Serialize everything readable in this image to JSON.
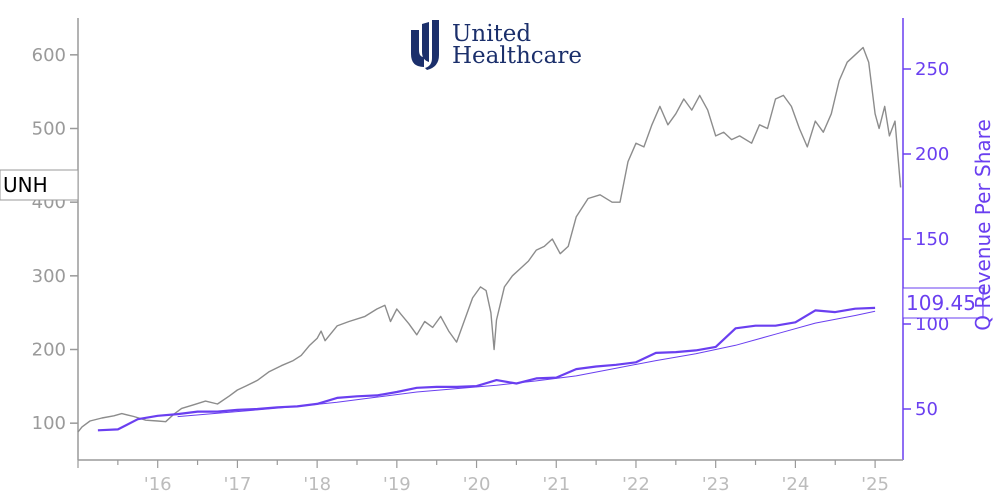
{
  "logo": {
    "line1": "United",
    "line2": "Healthcare",
    "color": "#1b2f6b"
  },
  "chart_data": {
    "type": "line",
    "ticker_label": "UNH",
    "ylabel_right": "Q Revenue Per Share",
    "last_value_label": "109.45",
    "xlim": [
      2015.0,
      2025.35
    ],
    "ylim_left": [
      50,
      650
    ],
    "ylim_right": [
      20,
      280
    ],
    "x_ticks": [
      {
        "x": 2016,
        "label": "'16"
      },
      {
        "x": 2017,
        "label": "'17"
      },
      {
        "x": 2018,
        "label": "'18"
      },
      {
        "x": 2019,
        "label": "'19"
      },
      {
        "x": 2020,
        "label": "'20"
      },
      {
        "x": 2021,
        "label": "'21"
      },
      {
        "x": 2022,
        "label": "'22"
      },
      {
        "x": 2023,
        "label": "'23"
      },
      {
        "x": 2024,
        "label": "'24"
      },
      {
        "x": 2025,
        "label": "'25"
      }
    ],
    "y_ticks_left": [
      {
        "v": 100,
        "label": "100"
      },
      {
        "v": 200,
        "label": "200"
      },
      {
        "v": 300,
        "label": "300"
      },
      {
        "v": 400,
        "label": "400"
      },
      {
        "v": 500,
        "label": "500"
      },
      {
        "v": 600,
        "label": "600"
      }
    ],
    "y_ticks_right": [
      {
        "v": 50,
        "label": "50"
      },
      {
        "v": 100,
        "label": "100"
      },
      {
        "v": 150,
        "label": "150"
      },
      {
        "v": 200,
        "label": "200"
      },
      {
        "v": 250,
        "label": "250"
      }
    ],
    "colors": {
      "price": "#8c8c8c",
      "revenue": "#6a3ff0",
      "revenue_trend": "#6a3ff0",
      "axis_left": "#9a9a9a",
      "axis_right": "#6a3ff0",
      "axis_bottom": "#9a9a9a"
    },
    "series": [
      {
        "axis": "left",
        "style": "price",
        "points": [
          [
            2015.0,
            88
          ],
          [
            2015.05,
            95
          ],
          [
            2015.15,
            103
          ],
          [
            2015.3,
            107
          ],
          [
            2015.45,
            110
          ],
          [
            2015.55,
            113
          ],
          [
            2015.7,
            109
          ],
          [
            2015.85,
            104
          ],
          [
            2016.0,
            103
          ],
          [
            2016.1,
            102
          ],
          [
            2016.2,
            112
          ],
          [
            2016.3,
            120
          ],
          [
            2016.45,
            125
          ],
          [
            2016.6,
            130
          ],
          [
            2016.75,
            126
          ],
          [
            2016.9,
            137
          ],
          [
            2017.0,
            145
          ],
          [
            2017.1,
            150
          ],
          [
            2017.25,
            158
          ],
          [
            2017.4,
            170
          ],
          [
            2017.55,
            178
          ],
          [
            2017.7,
            185
          ],
          [
            2017.8,
            192
          ],
          [
            2017.9,
            205
          ],
          [
            2018.0,
            215
          ],
          [
            2018.05,
            225
          ],
          [
            2018.1,
            212
          ],
          [
            2018.25,
            232
          ],
          [
            2018.4,
            238
          ],
          [
            2018.6,
            245
          ],
          [
            2018.75,
            255
          ],
          [
            2018.85,
            260
          ],
          [
            2018.92,
            238
          ],
          [
            2019.0,
            255
          ],
          [
            2019.05,
            248
          ],
          [
            2019.15,
            235
          ],
          [
            2019.25,
            220
          ],
          [
            2019.35,
            238
          ],
          [
            2019.45,
            230
          ],
          [
            2019.55,
            245
          ],
          [
            2019.65,
            225
          ],
          [
            2019.75,
            210
          ],
          [
            2019.85,
            240
          ],
          [
            2019.95,
            270
          ],
          [
            2020.05,
            285
          ],
          [
            2020.12,
            280
          ],
          [
            2020.18,
            250
          ],
          [
            2020.22,
            200
          ],
          [
            2020.25,
            240
          ],
          [
            2020.35,
            285
          ],
          [
            2020.45,
            300
          ],
          [
            2020.55,
            310
          ],
          [
            2020.65,
            320
          ],
          [
            2020.75,
            335
          ],
          [
            2020.85,
            340
          ],
          [
            2020.95,
            350
          ],
          [
            2021.05,
            330
          ],
          [
            2021.15,
            340
          ],
          [
            2021.25,
            380
          ],
          [
            2021.4,
            405
          ],
          [
            2021.55,
            410
          ],
          [
            2021.7,
            400
          ],
          [
            2021.8,
            400
          ],
          [
            2021.9,
            455
          ],
          [
            2022.0,
            480
          ],
          [
            2022.1,
            475
          ],
          [
            2022.2,
            505
          ],
          [
            2022.3,
            530
          ],
          [
            2022.4,
            505
          ],
          [
            2022.5,
            520
          ],
          [
            2022.6,
            540
          ],
          [
            2022.7,
            525
          ],
          [
            2022.8,
            545
          ],
          [
            2022.9,
            525
          ],
          [
            2023.0,
            490
          ],
          [
            2023.1,
            495
          ],
          [
            2023.2,
            485
          ],
          [
            2023.3,
            490
          ],
          [
            2023.45,
            480
          ],
          [
            2023.55,
            505
          ],
          [
            2023.65,
            500
          ],
          [
            2023.75,
            540
          ],
          [
            2023.85,
            545
          ],
          [
            2023.95,
            530
          ],
          [
            2024.05,
            500
          ],
          [
            2024.15,
            475
          ],
          [
            2024.25,
            510
          ],
          [
            2024.35,
            495
          ],
          [
            2024.45,
            520
          ],
          [
            2024.55,
            565
          ],
          [
            2024.65,
            590
          ],
          [
            2024.75,
            600
          ],
          [
            2024.85,
            610
          ],
          [
            2024.92,
            590
          ],
          [
            2025.0,
            520
          ],
          [
            2025.05,
            500
          ],
          [
            2025.12,
            530
          ],
          [
            2025.18,
            490
          ],
          [
            2025.25,
            510
          ],
          [
            2025.32,
            420
          ]
        ]
      },
      {
        "axis": "right",
        "style": "revenue",
        "points": [
          [
            2015.25,
            37.5
          ],
          [
            2015.5,
            38.0
          ],
          [
            2015.75,
            44.0
          ],
          [
            2016.0,
            46.0
          ],
          [
            2016.25,
            47.0
          ],
          [
            2016.5,
            48.5
          ],
          [
            2016.75,
            48.5
          ],
          [
            2017.0,
            49.5
          ],
          [
            2017.25,
            50.0
          ],
          [
            2017.5,
            51.0
          ],
          [
            2017.75,
            51.5
          ],
          [
            2018.0,
            53.0
          ],
          [
            2018.25,
            56.5
          ],
          [
            2018.5,
            57.5
          ],
          [
            2018.75,
            58.0
          ],
          [
            2019.0,
            60.0
          ],
          [
            2019.25,
            62.5
          ],
          [
            2019.5,
            63.0
          ],
          [
            2019.75,
            63.0
          ],
          [
            2020.0,
            63.5
          ],
          [
            2020.25,
            67.0
          ],
          [
            2020.5,
            65.0
          ],
          [
            2020.75,
            68.0
          ],
          [
            2021.0,
            68.5
          ],
          [
            2021.25,
            73.5
          ],
          [
            2021.5,
            75.0
          ],
          [
            2021.75,
            76.0
          ],
          [
            2022.0,
            77.5
          ],
          [
            2022.25,
            83.0
          ],
          [
            2022.5,
            83.5
          ],
          [
            2022.75,
            84.5
          ],
          [
            2023.0,
            86.5
          ],
          [
            2023.25,
            97.5
          ],
          [
            2023.5,
            99.0
          ],
          [
            2023.75,
            99.0
          ],
          [
            2024.0,
            101.0
          ],
          [
            2024.25,
            108.0
          ],
          [
            2024.5,
            107.0
          ],
          [
            2024.75,
            109.0
          ],
          [
            2025.0,
            109.45
          ]
        ]
      },
      {
        "axis": "right",
        "style": "revenue_trend",
        "points": [
          [
            2016.25,
            45.5
          ],
          [
            2016.75,
            47.5
          ],
          [
            2017.25,
            49.5
          ],
          [
            2017.75,
            51.5
          ],
          [
            2018.25,
            54.0
          ],
          [
            2018.75,
            57.0
          ],
          [
            2019.25,
            60.0
          ],
          [
            2019.75,
            62.0
          ],
          [
            2020.25,
            64.0
          ],
          [
            2020.75,
            66.5
          ],
          [
            2021.25,
            69.5
          ],
          [
            2021.75,
            74.0
          ],
          [
            2022.25,
            78.5
          ],
          [
            2022.75,
            82.5
          ],
          [
            2023.25,
            87.5
          ],
          [
            2023.75,
            94.0
          ],
          [
            2024.25,
            100.5
          ],
          [
            2024.75,
            105.0
          ],
          [
            2025.0,
            107.5
          ]
        ]
      }
    ]
  }
}
